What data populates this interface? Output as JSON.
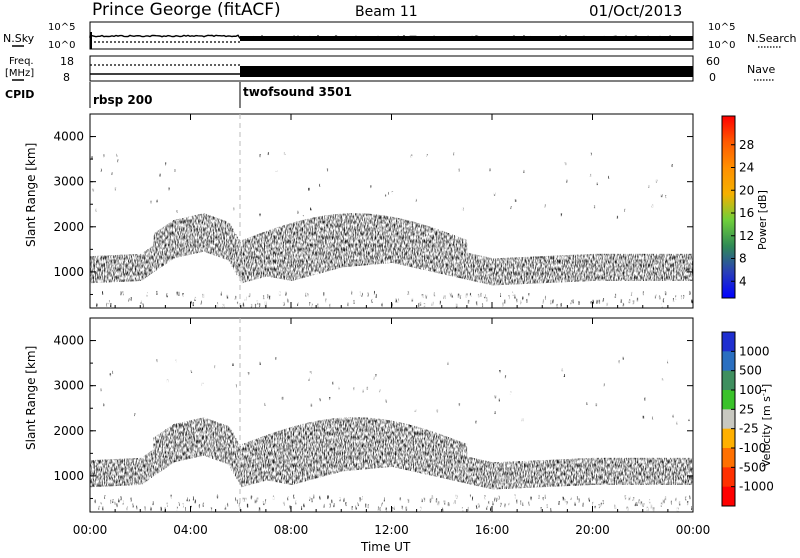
{
  "header": {
    "station": "Prince George (fitACF)",
    "beam": "Beam 11",
    "date": "01/Oct/2013"
  },
  "strips": {
    "nsky_label": "N.Sky",
    "nsearch_label": "N.Search",
    "nsky_ticks": [
      "10^5",
      "10^0"
    ],
    "nsearch_ticks": [
      "10^5",
      "10^0"
    ],
    "freq_label_1": "Freq.",
    "freq_label_2": "[MHz]",
    "freq_ticks": [
      "18",
      "8"
    ],
    "nave_label": "Nave",
    "nave_ticks": [
      "60",
      "0"
    ],
    "cpid_label": "CPID",
    "cpid_segments": [
      {
        "name": "rbsp 200",
        "start_hour": 0
      },
      {
        "name": "twofsound 3501",
        "start_hour": 6
      }
    ]
  },
  "chart_data": [
    {
      "type": "heatmap",
      "name": "power",
      "xlabel": "",
      "ylabel": "Slant Range [km]",
      "xlim": [
        0,
        24
      ],
      "ylim": [
        200,
        4500
      ],
      "y_ticks": [
        "4000",
        "3000",
        "2000",
        "1000"
      ],
      "colorbar": {
        "label": "Power [dB]",
        "ticks": [
          "28",
          "24",
          "20",
          "16",
          "12",
          "8",
          "4"
        ],
        "colors": [
          "#ff0000",
          "#ff5a00",
          "#ff9000",
          "#f5b000",
          "#6fcf3a",
          "#2f8a55",
          "#2a3fb8",
          "#0000ff"
        ]
      }
    },
    {
      "type": "heatmap",
      "name": "velocity",
      "xlabel": "Time UT",
      "ylabel": "Slant Range [km]",
      "xlim": [
        0,
        24
      ],
      "ylim": [
        200,
        4500
      ],
      "x_ticks": [
        "00:00",
        "04:00",
        "08:00",
        "12:00",
        "16:00",
        "20:00",
        "00:00"
      ],
      "y_ticks": [
        "4000",
        "3000",
        "2000",
        "1000"
      ],
      "colorbar": {
        "label": "Velocity [m s-1]",
        "label_main": "Velocity [m s",
        "label_sup": "-1",
        "label_tail": "]",
        "ticks": [
          "1000",
          "500",
          "100",
          "25",
          "-25",
          "-100",
          "-500",
          "-1000"
        ],
        "colors": [
          "#1f2fd0",
          "#2a6fc0",
          "#3f8f5f",
          "#3ac22a",
          "#c8c8c0",
          "#ffb000",
          "#ff7000",
          "#ff3000",
          "#ff0000"
        ]
      }
    }
  ]
}
